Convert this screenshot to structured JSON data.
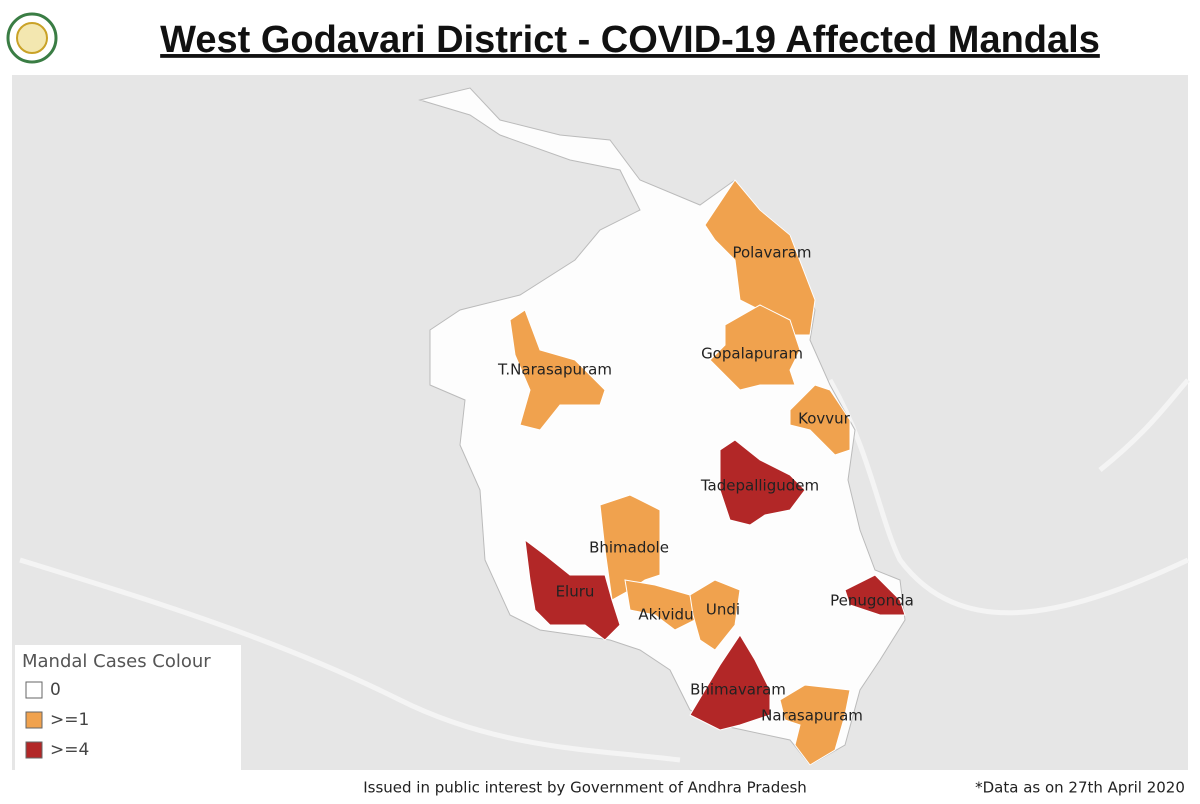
{
  "header": {
    "title": "West Godavari District - COVID-19 Affected Mandals"
  },
  "map": {
    "mandals": [
      {
        "name": "Polavaram",
        "color": "#f0a24e"
      },
      {
        "name": "Gopalapuram",
        "color": "#f0a24e"
      },
      {
        "name": "T.Narasapuram",
        "color": "#f0a24e"
      },
      {
        "name": "Kovvur",
        "color": "#f0a24e"
      },
      {
        "name": "Tadepalligudem",
        "color": "#b22727"
      },
      {
        "name": "Bhimadole",
        "color": "#f0a24e"
      },
      {
        "name": "Eluru",
        "color": "#b22727"
      },
      {
        "name": "Akividu",
        "color": "#f0a24e"
      },
      {
        "name": "Undi",
        "color": "#f0a24e"
      },
      {
        "name": "Penugonda",
        "color": "#b22727"
      },
      {
        "name": "Bhimavaram",
        "color": "#b22727"
      },
      {
        "name": "Narasapuram",
        "color": "#f0a24e"
      }
    ],
    "legend": {
      "title": "Mandal Cases Colour",
      "items": [
        {
          "label": "0",
          "color": "#ffffff"
        },
        {
          "label": ">=1",
          "color": "#f0a24e"
        },
        {
          "label": ">=4",
          "color": "#b22727"
        }
      ]
    }
  },
  "footer": {
    "note": "Issued in public interest by Government of Andhra Pradesh",
    "date": "*Data as on 27th April 2020"
  }
}
